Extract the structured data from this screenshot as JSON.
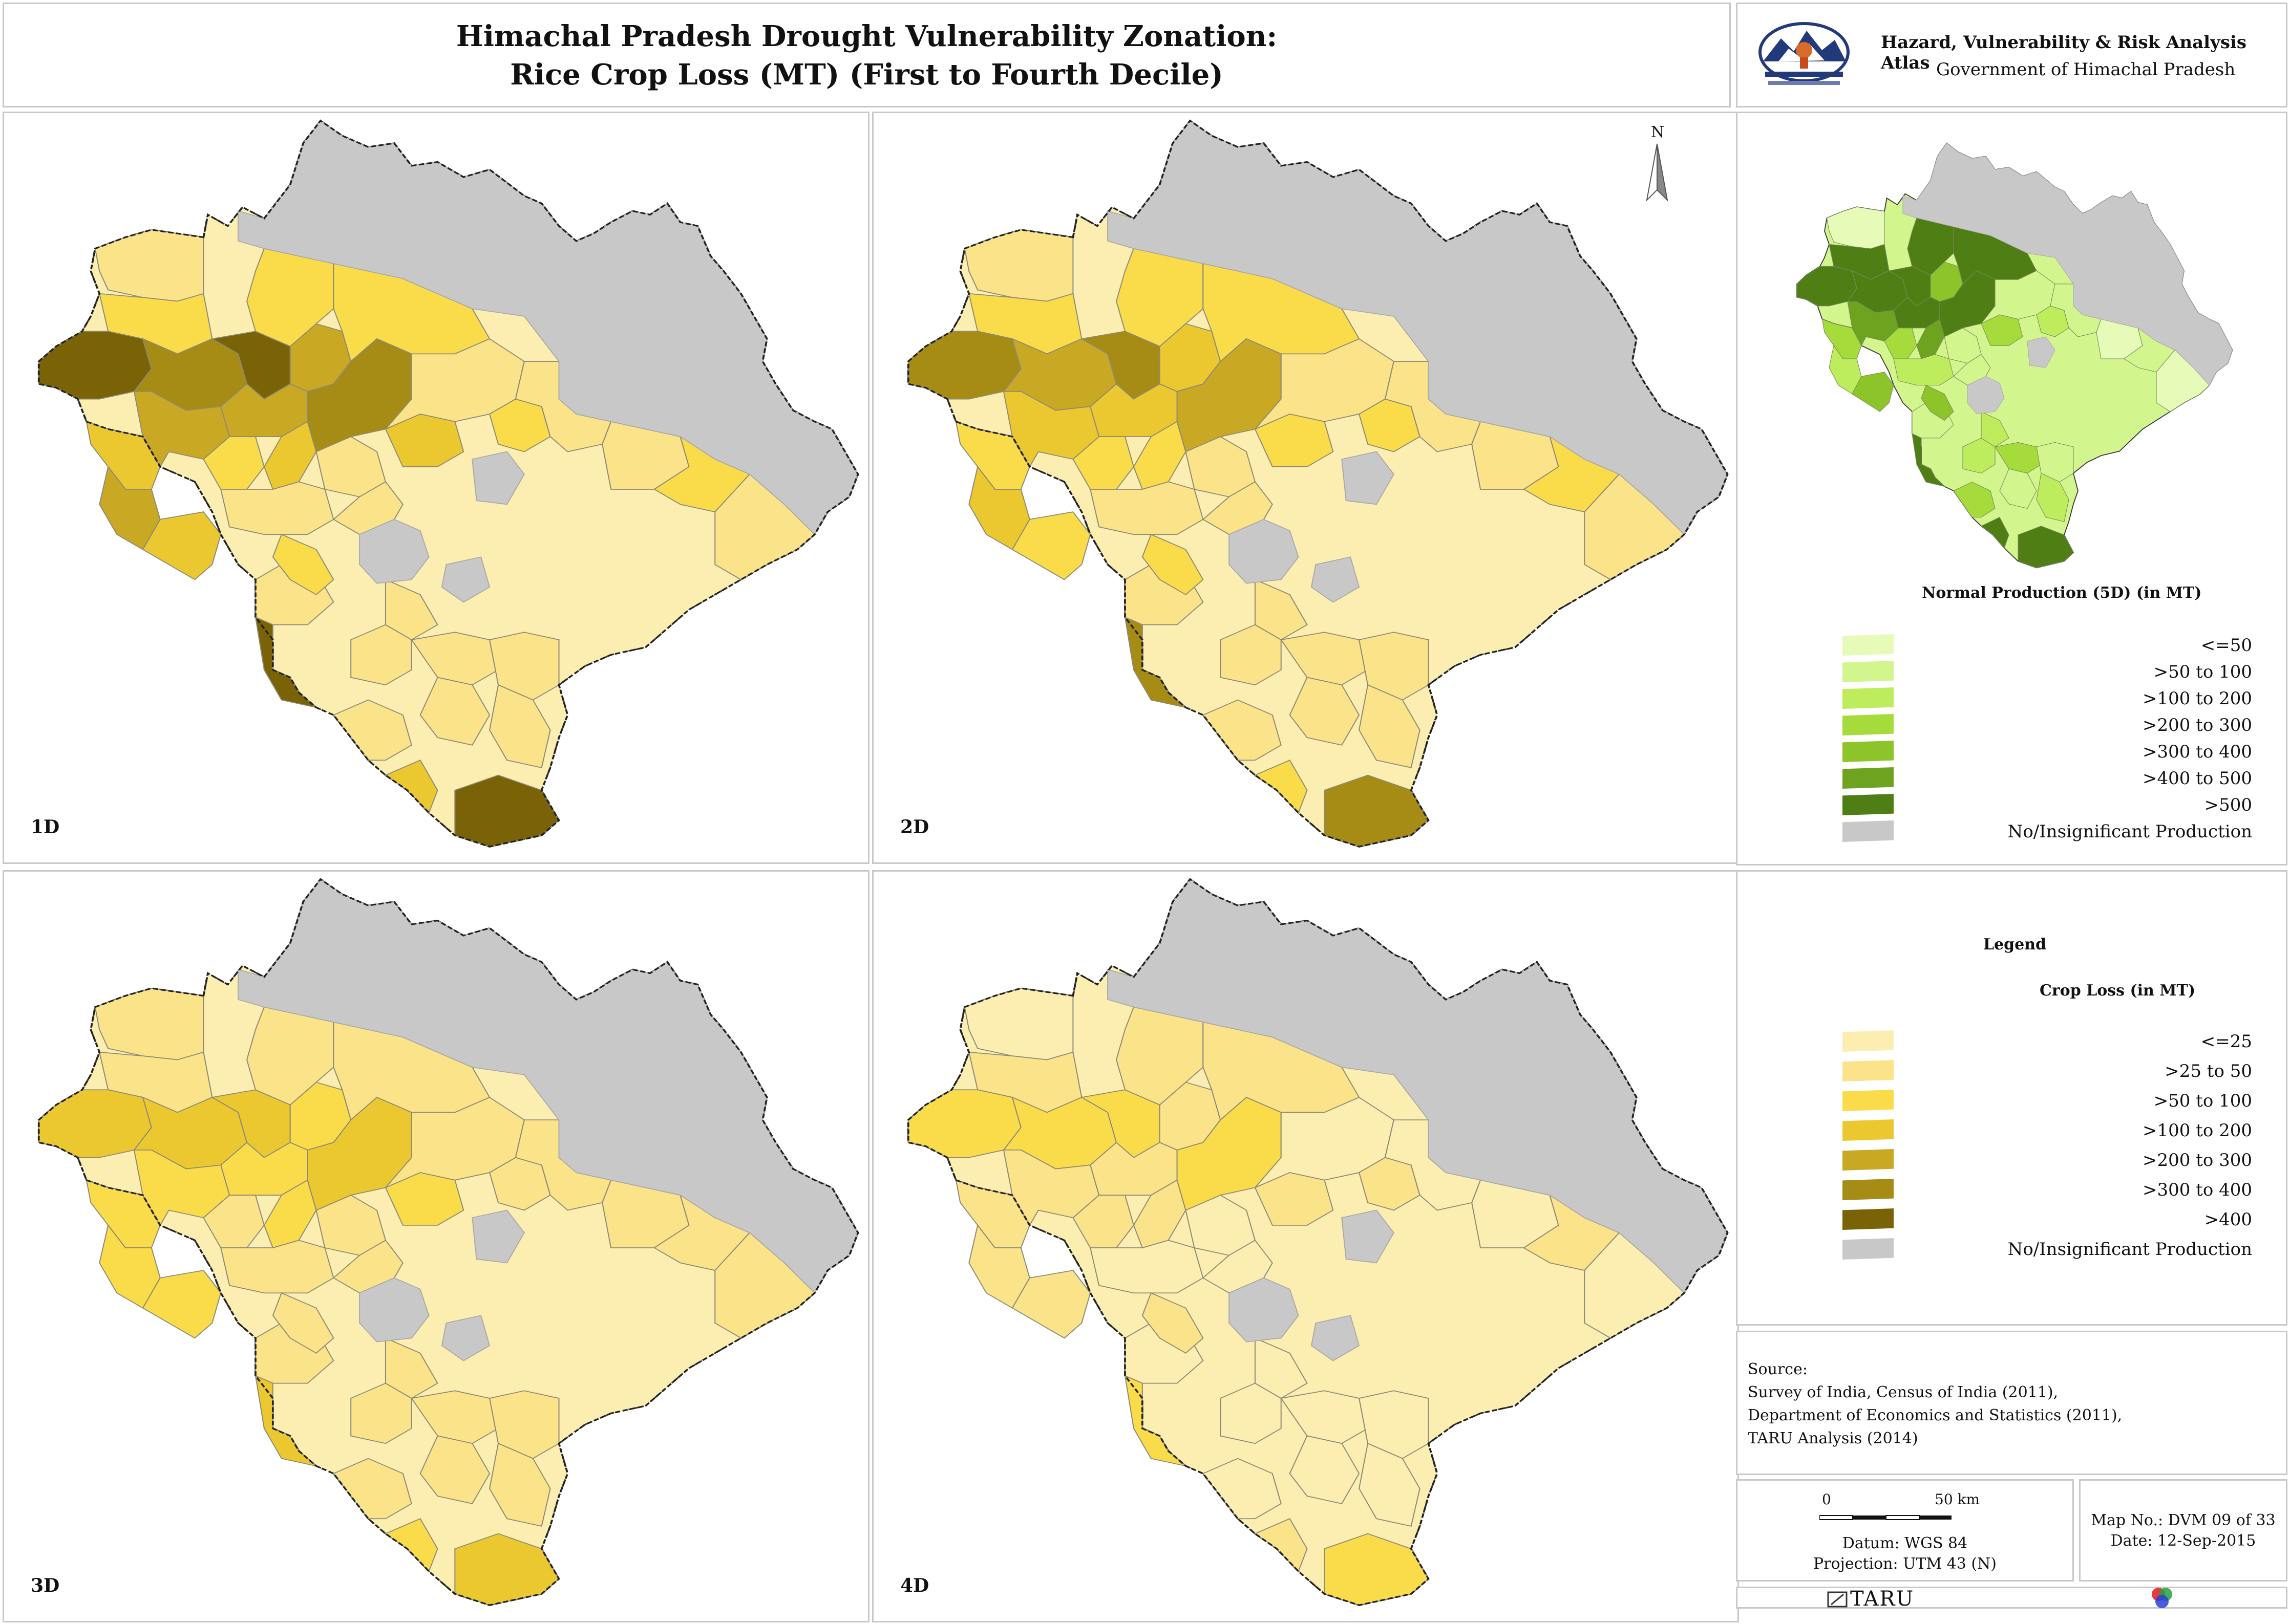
{
  "title": {
    "line1": "Himachal Pradesh Drought Vulnerability Zonation:",
    "line2": "Rice Crop Loss (MT) (First to Fourth Decile)"
  },
  "atlas": {
    "title": "Hazard, Vulnerability & Risk Analysis Atlas",
    "subtitle": "Government of Himachal Pradesh",
    "logo_icon": "himachal-emblem-icon"
  },
  "maps": [
    {
      "label": "1D",
      "level": 1.0
    },
    {
      "label": "2D",
      "level": 0.75
    },
    {
      "label": "3D",
      "level": 0.5
    },
    {
      "label": "4D",
      "level": 0.3
    }
  ],
  "north_arrow": "N",
  "inset": {
    "legend_title": "Normal Production (5D) (in MT)",
    "classes": [
      {
        "label": "<=50",
        "color": "#e6fbb8"
      },
      {
        "label": ">50 to 100",
        "color": "#d3f58e"
      },
      {
        "label": ">100 to 200",
        "color": "#bdec5c"
      },
      {
        "label": ">200 to 300",
        "color": "#a5db3a"
      },
      {
        "label": ">300 to 400",
        "color": "#8cc42a"
      },
      {
        "label": ">400 to 500",
        "color": "#6ea320"
      },
      {
        "label": ">500",
        "color": "#4f7f14"
      },
      {
        "label": "No/Insignificant Production",
        "color": "#c8c8c8"
      }
    ]
  },
  "legend": {
    "heading": "Legend",
    "title": "Crop Loss (in MT)",
    "classes": [
      {
        "label": "<=25",
        "color": "#fbeeb0"
      },
      {
        "label": ">25 to 50",
        "color": "#fbe389"
      },
      {
        "label": ">50 to 100",
        "color": "#fadc4a"
      },
      {
        "label": ">100 to 200",
        "color": "#ecc830"
      },
      {
        "label": ">200 to 300",
        "color": "#c9a824"
      },
      {
        "label": ">300 to 400",
        "color": "#a68c14"
      },
      {
        "label": ">400",
        "color": "#7a6206"
      },
      {
        "label": "No/Insignificant Production",
        "color": "#c8c8c8"
      }
    ]
  },
  "source": {
    "heading": "Source:",
    "lines": [
      "Survey of India, Census of India (2011),",
      "Department of Economics and Statistics (2011),",
      "TARU Analysis (2014)"
    ]
  },
  "scale": {
    "start": "0",
    "end": "50 km",
    "datum": "Datum: WGS 84",
    "projection": "Projection: UTM 43 (N)"
  },
  "map_info": {
    "map_no": "Map No.: DVM 09 of 33",
    "date": "Date: 12-Sep-2015"
  },
  "footer": {
    "taru": "TARU",
    "taru_icon": "taru-logo-icon",
    "rgb_icon": "rgb-circles-icon"
  }
}
